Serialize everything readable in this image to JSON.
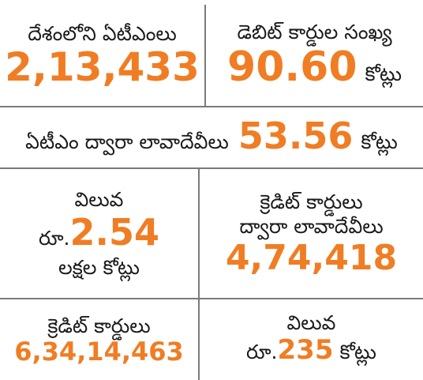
{
  "theme": {
    "accent": "#f07d24",
    "text": "#1a1a1a",
    "divider": "#7a7a7a",
    "background": "#ffffff"
  },
  "atms": {
    "label": "దేశంలోని ఏటీఎంలు",
    "value": "2,13,433"
  },
  "debit_cards": {
    "label": "డెబిట్ కార్డుల సంఖ్య",
    "value": "90.60",
    "unit": "కోట్లు"
  },
  "atm_transactions": {
    "label": "ఏటీఎం ద్వారా లావాదేవీలు",
    "value": "53.56",
    "unit": "కోట్లు"
  },
  "value_left": {
    "label": "విలువ",
    "prefix": "రూ.",
    "value": "2.54",
    "unit": "లక్షల కోట్లు"
  },
  "credit_transactions": {
    "label_line1": "క్రెడిట్ కార్డులు",
    "label_line2": "ద్వారా లావాదేవీలు",
    "value": "4,74,418"
  },
  "credit_cards": {
    "label": "క్రెడిట్ కార్డులు",
    "value": "6,34,14,463"
  },
  "value_right": {
    "label": "విలువ",
    "prefix": "రూ.",
    "value": "235",
    "unit": "కోట్లు"
  }
}
